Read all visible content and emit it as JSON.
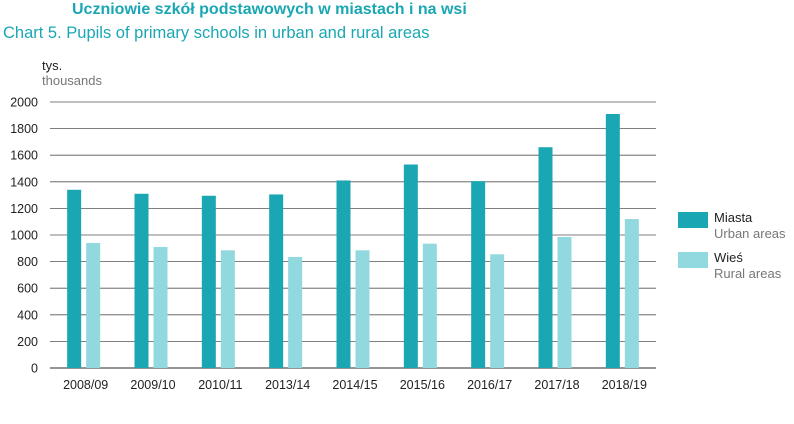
{
  "header": {
    "title_pl": "Uczniowie szkół podstawowych w miastach i na wsi",
    "title_en": "Chart 5. Pupils of primary schools in urban and rural areas"
  },
  "units": {
    "pl": "tys.",
    "en": "thousands"
  },
  "colors": {
    "urban": "#1aa7b3",
    "rural": "#92d8df",
    "grid": "#555555",
    "title": "#1aa7b3"
  },
  "chart_data": {
    "type": "bar",
    "categories": [
      "2008/09",
      "2009/10",
      "2010/11",
      "2013/14",
      "2014/15",
      "2015/16",
      "2016/17",
      "2017/18",
      "2018/19"
    ],
    "series": [
      {
        "name": "Miasta",
        "name_en": "Urban areas",
        "values": [
          1340,
          1310,
          1295,
          1305,
          1410,
          1530,
          1405,
          1660,
          1910
        ]
      },
      {
        "name": "Wieś",
        "name_en": "Rural areas",
        "values": [
          940,
          910,
          885,
          835,
          885,
          935,
          855,
          985,
          1120
        ]
      }
    ],
    "ylim": [
      0,
      2000
    ],
    "yticks": [
      0,
      200,
      400,
      600,
      800,
      1000,
      1200,
      1400,
      1600,
      1800,
      2000
    ],
    "ylabel": "tys. / thousands",
    "grid": true,
    "legend_position": "right"
  }
}
